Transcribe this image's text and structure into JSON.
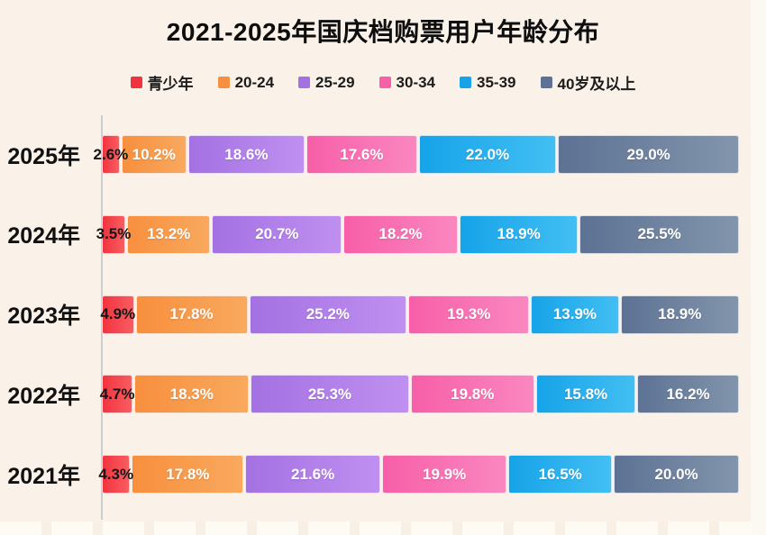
{
  "title": "2021-2025年国庆档购票用户年龄分布",
  "background_color": "#faf1e8",
  "axis_color": "#cdcdcd",
  "label_colors": {
    "first_segment_text": "#161616",
    "segment_text": "#ffffff",
    "year_text": "#111111",
    "title_text": "#0e0e0e"
  },
  "chart_data": {
    "type": "bar",
    "variant": "horizontal-stacked",
    "title": "2021-2025年国庆档购票用户年龄分布",
    "categories": [
      "2025年",
      "2024年",
      "2023年",
      "2022年",
      "2021年"
    ],
    "series": [
      {
        "name": "青少年",
        "color_start": "#f2333f",
        "color_end": "#f95d61",
        "values": [
          2.6,
          3.5,
          4.9,
          4.7,
          4.3
        ]
      },
      {
        "name": "20-24",
        "color_start": "#f78f3e",
        "color_end": "#f9a95e",
        "values": [
          10.2,
          13.2,
          17.8,
          18.3,
          17.8
        ]
      },
      {
        "name": "25-29",
        "color_start": "#a471e2",
        "color_end": "#bf90f0",
        "values": [
          18.6,
          20.7,
          25.2,
          25.3,
          21.6
        ]
      },
      {
        "name": "30-34",
        "color_start": "#f75fa8",
        "color_end": "#fa87c0",
        "values": [
          17.6,
          18.2,
          19.3,
          19.8,
          19.9
        ]
      },
      {
        "name": "35-39",
        "color_start": "#16a3e8",
        "color_end": "#42bff3",
        "values": [
          22.0,
          18.9,
          13.9,
          15.8,
          16.5
        ]
      },
      {
        "name": "40岁及以上",
        "color_start": "#5d7294",
        "color_end": "#8295ac",
        "values": [
          29.0,
          25.5,
          18.9,
          16.2,
          20.0
        ]
      }
    ],
    "value_suffix": "%",
    "value_decimals": 1,
    "xlim": [
      0,
      100
    ],
    "legend_position": "top",
    "grid": false
  }
}
